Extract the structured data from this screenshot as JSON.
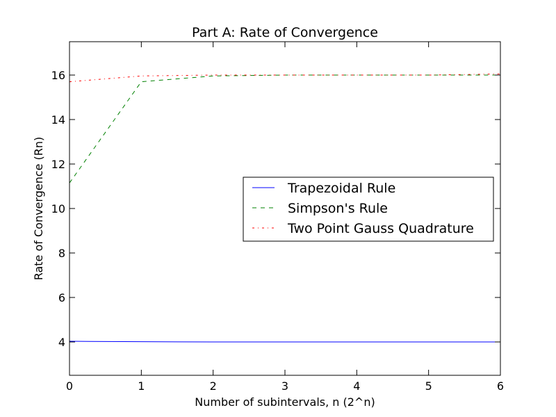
{
  "chart_data": {
    "type": "line",
    "title": "Part A: Rate of Convergence",
    "xlabel": "Number of subintervals, n (2^n)",
    "ylabel": "Rate of Convergence (Rn)",
    "xlim": [
      0,
      6
    ],
    "ylim": [
      2.5,
      17.5
    ],
    "xticks": [
      0,
      1,
      2,
      3,
      4,
      5,
      6
    ],
    "yticks": [
      4,
      6,
      8,
      10,
      12,
      14,
      16
    ],
    "grid": false,
    "legend_position": "center-right",
    "x": [
      0,
      1,
      2,
      3,
      4,
      5,
      6
    ],
    "series": [
      {
        "name": "Trapezoidal Rule",
        "values": [
          4.03,
          4.01,
          4.0,
          4.0,
          4.0,
          4.0,
          4.0
        ],
        "color": "#0000ff",
        "dash": "solid"
      },
      {
        "name": "Simpson's Rule",
        "values": [
          11.15,
          15.7,
          15.96,
          16.0,
          16.0,
          16.0,
          16.0
        ],
        "color": "#008000",
        "dash": "dashed"
      },
      {
        "name": "Two Point Gauss Quadrature",
        "values": [
          15.7,
          15.96,
          16.0,
          16.0,
          16.0,
          16.0,
          16.05
        ],
        "color": "#ff0000",
        "dash": "dashdot"
      }
    ]
  }
}
